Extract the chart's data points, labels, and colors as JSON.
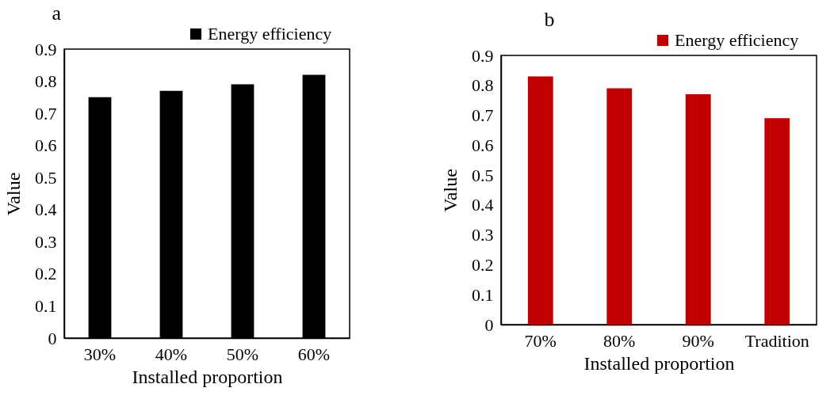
{
  "chart_data": [
    {
      "type": "bar",
      "title": "a",
      "xlabel": "Installed proportion",
      "ylabel": "Value",
      "categories": [
        "30%",
        "40%",
        "50%",
        "60%"
      ],
      "series": [
        {
          "name": "Energy efficiency",
          "color": "#000000",
          "values": [
            0.75,
            0.77,
            0.79,
            0.82
          ]
        }
      ],
      "ylim": [
        0,
        0.9
      ],
      "yticks": [
        {
          "value": 0,
          "label": "0"
        },
        0.1,
        0.2,
        0.3,
        0.4,
        0.5,
        0.6,
        0.7,
        0.8,
        0.9
      ],
      "grid": false,
      "legend": "top right"
    },
    {
      "type": "bar",
      "title": "b",
      "xlabel": "Installed proportion",
      "ylabel": "Value",
      "categories": [
        "70%",
        "80%",
        "90%",
        "Tradition"
      ],
      "series": [
        {
          "name": "Energy efficiency",
          "color": "#c00000",
          "values": [
            0.83,
            0.79,
            0.77,
            0.69
          ]
        }
      ],
      "ylim": [
        0,
        0.9
      ],
      "yticks": [
        {
          "value": 0,
          "label": "0"
        },
        0.1,
        0.2,
        0.3,
        0.4,
        0.5,
        0.6,
        0.7,
        0.8,
        0.9
      ],
      "grid": false,
      "legend": "top right"
    }
  ]
}
